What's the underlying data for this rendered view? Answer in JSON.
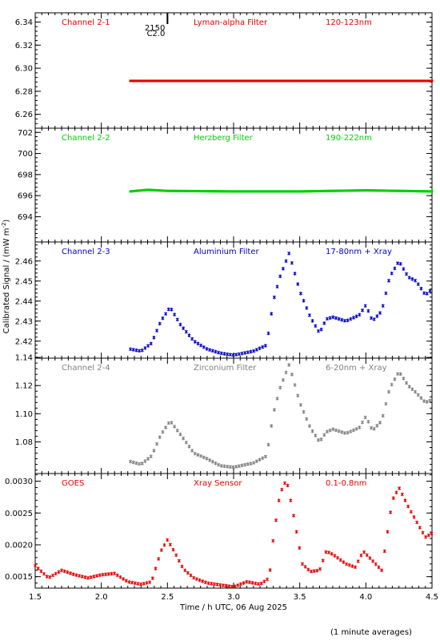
{
  "ylabel": "Calibrated Signal / (mW m",
  "ylabel_sup": "-2",
  "xlabel": "Time / h UTC, 06 Aug 2025",
  "footnote": "(1 minute averages)",
  "marker": {
    "label_top": "2150",
    "label_bottom": "C2.0",
    "x": 2.5
  },
  "chart_data": [
    {
      "type": "scatter",
      "channel": "Channel 2-1",
      "filter": "Lyman-alpha Filter",
      "band": "120-123nm",
      "color": "#e60000",
      "xlim": [
        1.5,
        4.5
      ],
      "ylim": [
        6.248,
        6.348
      ],
      "yticks": [
        "6.26",
        "6.28",
        "6.30",
        "6.32",
        "6.34"
      ],
      "series": [
        {
          "x": [
            2.22,
            4.5
          ],
          "y": [
            6.289,
            6.289
          ]
        }
      ]
    },
    {
      "type": "scatter",
      "channel": "Channel 2-2",
      "filter": "Herzberg Filter",
      "band": "190-222nm",
      "color": "#00d000",
      "xlim": [
        1.5,
        4.5
      ],
      "ylim": [
        691.6,
        702.4
      ],
      "yticks": [
        "694",
        "696",
        "698",
        "700",
        "702"
      ],
      "series": [
        {
          "x": [
            2.22,
            2.35,
            2.5,
            3.0,
            3.5,
            4.0,
            4.5
          ],
          "y": [
            696.4,
            696.55,
            696.45,
            696.4,
            696.4,
            696.5,
            696.4
          ]
        }
      ]
    },
    {
      "type": "scatter",
      "channel": "Channel 2-3",
      "filter": "Aluminium Filter",
      "band": "17-80nm + Xray",
      "color": "#0000c8",
      "xlim": [
        1.5,
        4.5
      ],
      "ylim": [
        2.4115,
        2.4695
      ],
      "yticks": [
        "2.42",
        "2.43",
        "2.44",
        "2.45",
        "2.46"
      ],
      "series": [
        {
          "x": [
            2.22,
            2.3,
            2.38,
            2.45,
            2.52,
            2.6,
            2.7,
            2.8,
            2.9,
            3.0,
            3.15,
            3.25,
            3.3,
            3.35,
            3.42,
            3.5,
            3.58,
            3.65,
            3.7,
            3.75,
            3.85,
            3.95,
            4.0,
            4.05,
            4.12,
            4.18,
            4.25,
            4.32,
            4.38,
            4.45,
            4.5
          ],
          "y": [
            2.416,
            2.415,
            2.419,
            2.43,
            2.437,
            2.428,
            2.42,
            2.416,
            2.414,
            2.413,
            2.415,
            2.418,
            2.44,
            2.452,
            2.464,
            2.445,
            2.432,
            2.424,
            2.431,
            2.432,
            2.43,
            2.433,
            2.438,
            2.43,
            2.435,
            2.452,
            2.46,
            2.452,
            2.45,
            2.443,
            2.446
          ]
        }
      ]
    },
    {
      "type": "scatter",
      "channel": "Channel 2-4",
      "filter": "Zirconium Filter",
      "band": "6-20nm + Xray",
      "color": "#808080",
      "xlim": [
        1.5,
        4.5
      ],
      "ylim": [
        1.0575,
        1.1395
      ],
      "yticks": [
        "1.08",
        "1.10",
        "1.12",
        "1.14"
      ],
      "series": [
        {
          "x": [
            2.22,
            2.3,
            2.38,
            2.45,
            2.52,
            2.6,
            2.7,
            2.8,
            2.9,
            3.0,
            3.15,
            3.25,
            3.3,
            3.35,
            3.42,
            3.5,
            3.58,
            3.65,
            3.7,
            3.75,
            3.85,
            3.95,
            4.0,
            4.05,
            4.12,
            4.18,
            4.25,
            4.32,
            4.38,
            4.45,
            4.5
          ],
          "y": [
            1.066,
            1.064,
            1.07,
            1.085,
            1.095,
            1.085,
            1.072,
            1.068,
            1.063,
            1.062,
            1.065,
            1.07,
            1.1,
            1.118,
            1.135,
            1.108,
            1.09,
            1.08,
            1.087,
            1.089,
            1.086,
            1.09,
            1.098,
            1.088,
            1.095,
            1.118,
            1.13,
            1.12,
            1.115,
            1.108,
            1.11
          ]
        }
      ]
    },
    {
      "type": "scatter",
      "channel": "GOES",
      "filter": "Xray Sensor",
      "band": "0.1-0.8nm",
      "color": "#e60000",
      "xlim": [
        1.5,
        4.5
      ],
      "ylim": [
        0.00132,
        0.00312
      ],
      "yticks": [
        "0.0015",
        "0.0020",
        "0.0025",
        "0.0030"
      ],
      "series": [
        {
          "x": [
            1.5,
            1.6,
            1.7,
            1.8,
            1.9,
            2.0,
            2.1,
            2.2,
            2.3,
            2.38,
            2.45,
            2.5,
            2.55,
            2.62,
            2.7,
            2.8,
            2.9,
            3.0,
            3.1,
            3.2,
            3.27,
            3.3,
            3.35,
            3.4,
            3.45,
            3.52,
            3.58,
            3.65,
            3.7,
            3.75,
            3.85,
            3.92,
            3.98,
            4.05,
            4.12,
            4.2,
            4.25,
            4.32,
            4.4,
            4.45,
            4.5
          ],
          "y": [
            0.00167,
            0.00148,
            0.0016,
            0.00153,
            0.00148,
            0.00153,
            0.00155,
            0.00142,
            0.00138,
            0.00142,
            0.0019,
            0.00208,
            0.0019,
            0.00162,
            0.00148,
            0.0014,
            0.00137,
            0.00134,
            0.00142,
            0.00138,
            0.00148,
            0.0021,
            0.0028,
            0.00303,
            0.0025,
            0.0017,
            0.00158,
            0.0016,
            0.0019,
            0.00185,
            0.0017,
            0.00165,
            0.0019,
            0.00175,
            0.0016,
            0.0027,
            0.0029,
            0.0026,
            0.0023,
            0.00212,
            0.00218
          ]
        }
      ]
    }
  ],
  "xticks": [
    "1.5",
    "2.0",
    "2.5",
    "3.0",
    "3.5",
    "4.0",
    "4.5"
  ],
  "xtick_values": [
    1.5,
    2.0,
    2.5,
    3.0,
    3.5,
    4.0,
    4.5
  ]
}
